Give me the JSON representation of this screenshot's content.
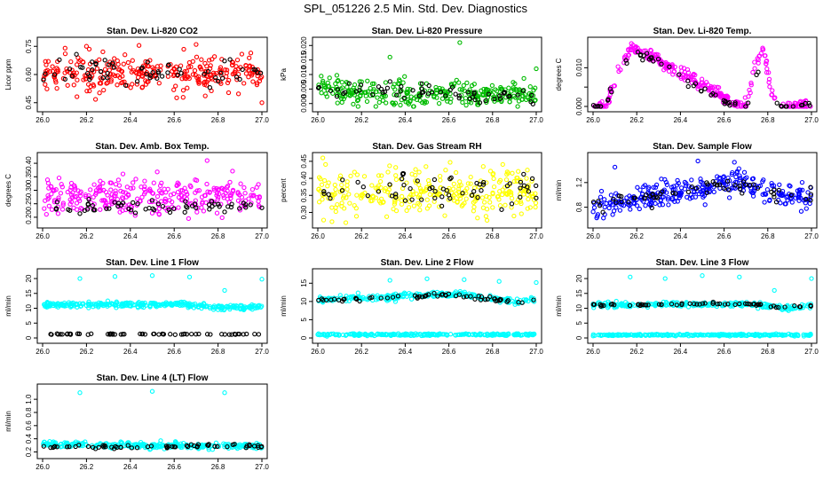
{
  "page_title": "SPL_051226  2.5 Min. Std. Dev. Diagnostics",
  "colors": {
    "red": "#ff0000",
    "green": "#00bb00",
    "magenta": "#ff00ff",
    "yellow": "#ffff00",
    "blue": "#0000ff",
    "cyan": "#00ffff",
    "black": "#000000"
  },
  "chart_data": [
    {
      "type": "scatter",
      "title": "Stan. Dev. Li-820 CO2",
      "ylabel": "Licor ppm",
      "xlim": [
        26.0,
        27.0
      ],
      "ylim": [
        0.43,
        0.77
      ],
      "xticks": [
        "26.0",
        "26.2",
        "26.4",
        "26.6",
        "26.8",
        "27.0"
      ],
      "yticks": [
        0.45,
        0.6,
        0.75
      ],
      "ytick_labels": [
        "0.45",
        "0.60",
        "0.75"
      ],
      "series": [
        {
          "color": "#ff0000",
          "trend": [
            [
              26.0,
              0.61
            ],
            [
              27.0,
              0.61
            ]
          ],
          "noise": 0.045,
          "n": 300,
          "outliers": [
            [
              26.2,
              0.75
            ],
            [
              26.7,
              0.76
            ],
            [
              27.0,
              0.45
            ]
          ]
        },
        {
          "color": "#000000",
          "trend": [
            [
              26.0,
              0.61
            ],
            [
              27.0,
              0.61
            ]
          ],
          "noise": 0.035,
          "n": 60
        }
      ]
    },
    {
      "type": "scatter",
      "title": "Stan. Dev. Li-820 Pressure",
      "ylabel": "kPa",
      "xlim": [
        26.0,
        27.0
      ],
      "ylim": [
        -0.001,
        0.021
      ],
      "xticks": [
        "26.0",
        "26.2",
        "26.4",
        "26.6",
        "26.8",
        "27.0"
      ],
      "yticks": [
        0.0,
        0.005,
        0.01,
        0.015,
        0.02
      ],
      "ytick_labels": [
        "0.000",
        "0.005",
        "0.010",
        "0.015",
        "0.020"
      ],
      "series": [
        {
          "color": "#00bb00",
          "trend": [
            [
              26.0,
              0.007
            ],
            [
              26.1,
              0.004
            ],
            [
              26.3,
              0.003
            ],
            [
              26.6,
              0.003
            ],
            [
              26.9,
              0.003
            ],
            [
              27.0,
              0.004
            ]
          ],
          "noise": 0.0022,
          "n": 300,
          "outliers": [
            [
              26.33,
              0.016
            ],
            [
              26.65,
              0.021
            ],
            [
              27.0,
              0.012
            ]
          ]
        },
        {
          "color": "#000000",
          "trend": [
            [
              26.0,
              0.005
            ],
            [
              27.0,
              0.002
            ]
          ],
          "noise": 0.0015,
          "n": 60
        }
      ]
    },
    {
      "type": "scatter",
      "title": "Stan. Dev. Li-820 Temp.",
      "ylabel": "degrees C",
      "xlim": [
        26.0,
        27.0
      ],
      "ylim": [
        0.0,
        0.0165
      ],
      "xticks": [
        "26.0",
        "26.2",
        "26.4",
        "26.6",
        "26.8",
        "27.0"
      ],
      "yticks": [
        0.0,
        0.005,
        0.01
      ],
      "ytick_labels": [
        "0.000",
        "",
        "0.010"
      ],
      "series": [
        {
          "color": "#ff00ff",
          "trend": [
            [
              26.0,
              0.0
            ],
            [
              26.06,
              0.0
            ],
            [
              26.1,
              0.007
            ],
            [
              26.18,
              0.0155
            ],
            [
              26.3,
              0.012
            ],
            [
              26.45,
              0.007
            ],
            [
              26.55,
              0.004
            ],
            [
              26.62,
              0.0015
            ],
            [
              26.7,
              0.0
            ],
            [
              26.74,
              0.01
            ],
            [
              26.78,
              0.015
            ],
            [
              26.82,
              0.003
            ],
            [
              26.85,
              0.0
            ],
            [
              27.0,
              0.0
            ]
          ],
          "noise": 0.0008,
          "n": 300
        },
        {
          "color": "#000000",
          "trend": [
            [
              26.0,
              0.0
            ],
            [
              26.06,
              0.0
            ],
            [
              26.1,
              0.007
            ],
            [
              26.18,
              0.0145
            ],
            [
              26.3,
              0.011
            ],
            [
              26.45,
              0.006
            ],
            [
              26.55,
              0.003
            ],
            [
              26.62,
              0.001
            ],
            [
              26.7,
              0.0
            ],
            [
              26.78,
              0.013
            ],
            [
              26.85,
              0.0
            ],
            [
              27.0,
              0.0
            ]
          ],
          "noise": 0.0006,
          "n": 60
        }
      ]
    },
    {
      "type": "scatter",
      "title": "Stan. Dev. Amb. Box Temp.",
      "ylabel": "degrees C",
      "xlim": [
        26.0,
        27.0
      ],
      "ylim": [
        0.18,
        0.42
      ],
      "xticks": [
        "26.0",
        "26.2",
        "26.4",
        "26.6",
        "26.8",
        "27.0"
      ],
      "yticks": [
        0.2,
        0.25,
        0.3,
        0.35,
        0.4
      ],
      "ytick_labels": [
        "0.20",
        "0.25",
        "0.30",
        "0.35",
        "0.40"
      ],
      "series": [
        {
          "color": "#ff00ff",
          "trend": [
            [
              26.0,
              0.28
            ],
            [
              27.0,
              0.28
            ]
          ],
          "noise": 0.032,
          "n": 300,
          "outliers": [
            [
              26.75,
              0.41
            ]
          ]
        },
        {
          "color": "#000000",
          "trend": [
            [
              26.0,
              0.235
            ],
            [
              27.0,
              0.24
            ]
          ],
          "noise": 0.012,
          "n": 60
        }
      ]
    },
    {
      "type": "scatter",
      "title": "Stan. Dev. Gas Stream RH",
      "ylabel": "percent",
      "xlim": [
        26.0,
        27.0
      ],
      "ylim": [
        0.27,
        0.46
      ],
      "xticks": [
        "26.0",
        "26.2",
        "26.4",
        "26.6",
        "26.8",
        "27.0"
      ],
      "yticks": [
        0.3,
        0.35,
        0.4,
        0.45
      ],
      "ytick_labels": [
        "0.30",
        "0.35",
        "0.40",
        "0.45"
      ],
      "series": [
        {
          "color": "#ffff00",
          "trend": [
            [
              26.0,
              0.36
            ],
            [
              27.0,
              0.36
            ]
          ],
          "noise": 0.032,
          "n": 300
        },
        {
          "color": "#000000",
          "trend": [
            [
              26.0,
              0.37
            ],
            [
              27.0,
              0.37
            ]
          ],
          "noise": 0.025,
          "n": 60
        }
      ]
    },
    {
      "type": "scatter",
      "title": "Stan. Dev. Sample Flow",
      "ylabel": "ml/min",
      "xlim": [
        26.0,
        27.0
      ],
      "ylim": [
        0.55,
        1.6
      ],
      "xticks": [
        "26.0",
        "26.2",
        "26.4",
        "26.6",
        "26.8",
        "27.0"
      ],
      "yticks": [
        0.8,
        1.2
      ],
      "ytick_labels": [
        "0.8",
        "1.2"
      ],
      "series": [
        {
          "color": "#0000ff",
          "trend": [
            [
              26.0,
              0.78
            ],
            [
              26.15,
              0.92
            ],
            [
              26.4,
              1.05
            ],
            [
              26.66,
              1.2
            ],
            [
              26.8,
              1.03
            ],
            [
              27.0,
              0.95
            ]
          ],
          "noise": 0.1,
          "n": 300,
          "outliers": [
            [
              26.1,
              1.45
            ],
            [
              26.48,
              1.55
            ],
            [
              26.66,
              1.38
            ]
          ]
        },
        {
          "color": "#000000",
          "trend": [
            [
              26.0,
              0.82
            ],
            [
              26.15,
              0.92
            ],
            [
              26.4,
              1.05
            ],
            [
              26.66,
              1.2
            ],
            [
              26.8,
              1.03
            ],
            [
              27.0,
              0.98
            ]
          ],
          "noise": 0.06,
          "n": 60
        }
      ]
    },
    {
      "type": "scatter",
      "title": "Stan. Dev. Line 1 Flow",
      "ylabel": "ml/min",
      "xlim": [
        26.0,
        27.0
      ],
      "ylim": [
        0.0,
        21.5
      ],
      "xticks": [
        "26.0",
        "26.2",
        "26.4",
        "26.6",
        "26.8",
        "27.0"
      ],
      "yticks": [
        0,
        5,
        10,
        15,
        20
      ],
      "ytick_labels": [
        "0",
        "5",
        "10",
        "15",
        "20"
      ],
      "series": [
        {
          "color": "#00ffff",
          "trend": [
            [
              26.0,
              11.0
            ],
            [
              26.6,
              11.5
            ],
            [
              26.8,
              10.2
            ],
            [
              27.0,
              10.5
            ]
          ],
          "noise": 0.45,
          "n": 300,
          "outliers": [
            [
              26.17,
              20.0
            ],
            [
              26.33,
              20.7
            ],
            [
              26.5,
              21.0
            ],
            [
              26.67,
              20.5
            ],
            [
              26.83,
              16.0
            ],
            [
              27.0,
              19.8
            ]
          ]
        },
        {
          "color": "#000000",
          "trend": [
            [
              26.0,
              1.3
            ],
            [
              27.0,
              1.3
            ]
          ],
          "noise": 0.08,
          "n": 60
        }
      ]
    },
    {
      "type": "scatter",
      "title": "Stan. Dev. Line 2 Flow",
      "ylabel": "ml/min",
      "xlim": [
        26.0,
        27.0
      ],
      "ylim": [
        0.0,
        17.5
      ],
      "xticks": [
        "26.0",
        "26.2",
        "26.4",
        "26.6",
        "26.8",
        "27.0"
      ],
      "yticks": [
        0,
        5,
        10,
        15
      ],
      "ytick_labels": [
        "0",
        "5",
        "10",
        "15"
      ],
      "series": [
        {
          "color": "#00ffff",
          "trend": [
            [
              26.0,
              0.9
            ],
            [
              27.0,
              0.9
            ]
          ],
          "noise": 0.15,
          "n": 250
        },
        {
          "color": "#00ffff",
          "trend": [
            [
              26.0,
              10.5
            ],
            [
              26.65,
              12.0
            ],
            [
              26.9,
              10.0
            ],
            [
              27.0,
              10.5
            ]
          ],
          "noise": 0.4,
          "n": 250,
          "outliers": [
            [
              26.33,
              15.8
            ],
            [
              26.5,
              16.2
            ],
            [
              26.67,
              16.0
            ],
            [
              26.83,
              15.5
            ],
            [
              27.0,
              15.2
            ]
          ]
        },
        {
          "color": "#000000",
          "trend": [
            [
              26.0,
              10.3
            ],
            [
              26.65,
              11.8
            ],
            [
              26.9,
              9.8
            ],
            [
              27.0,
              10.5
            ]
          ],
          "noise": 0.3,
          "n": 60
        }
      ]
    },
    {
      "type": "scatter",
      "title": "Stan. Dev. Line 3 Flow",
      "ylabel": "ml/min",
      "xlim": [
        26.0,
        27.0
      ],
      "ylim": [
        0.0,
        21.5
      ],
      "xticks": [
        "26.0",
        "26.2",
        "26.4",
        "26.6",
        "26.8",
        "27.0"
      ],
      "yticks": [
        0,
        5,
        10,
        15,
        20
      ],
      "ytick_labels": [
        "0",
        "5",
        "10",
        "15",
        "20"
      ],
      "series": [
        {
          "color": "#00ffff",
          "trend": [
            [
              26.0,
              1.0
            ],
            [
              27.0,
              1.0
            ]
          ],
          "noise": 0.15,
          "n": 250
        },
        {
          "color": "#00ffff",
          "trend": [
            [
              26.0,
              11.0
            ],
            [
              26.7,
              11.5
            ],
            [
              26.9,
              10.0
            ],
            [
              27.0,
              11.0
            ]
          ],
          "noise": 0.4,
          "n": 250,
          "outliers": [
            [
              26.17,
              20.5
            ],
            [
              26.33,
              20.0
            ],
            [
              26.5,
              21.0
            ],
            [
              26.67,
              20.5
            ],
            [
              26.83,
              16.0
            ],
            [
              27.0,
              20.0
            ]
          ]
        },
        {
          "color": "#000000",
          "trend": [
            [
              26.0,
              11.0
            ],
            [
              26.7,
              11.6
            ],
            [
              26.9,
              10.2
            ],
            [
              27.0,
              11.0
            ]
          ],
          "noise": 0.25,
          "n": 60
        }
      ]
    },
    {
      "type": "scatter",
      "title": "Stan. Dev. Line 4 (LT) Flow",
      "ylabel": "ml/min",
      "xlim": [
        26.0,
        27.0
      ],
      "ylim": [
        0.18,
        1.15
      ],
      "xticks": [
        "26.0",
        "26.2",
        "26.4",
        "26.6",
        "26.8",
        "27.0"
      ],
      "yticks": [
        0.2,
        0.4,
        0.6,
        0.8,
        1.0
      ],
      "ytick_labels": [
        "0.2",
        "0.4",
        "0.6",
        "0.8",
        "1.0"
      ],
      "series": [
        {
          "color": "#00ffff",
          "trend": [
            [
              26.0,
              0.32
            ],
            [
              26.5,
              0.3
            ],
            [
              27.0,
              0.29
            ]
          ],
          "noise": 0.022,
          "n": 300,
          "outliers": [
            [
              26.17,
              1.1
            ],
            [
              26.5,
              1.12
            ],
            [
              26.83,
              1.1
            ]
          ]
        },
        {
          "color": "#000000",
          "trend": [
            [
              26.0,
              0.28
            ],
            [
              26.5,
              0.28
            ],
            [
              26.85,
              0.31
            ],
            [
              27.0,
              0.28
            ]
          ],
          "noise": 0.012,
          "n": 60
        }
      ]
    }
  ]
}
